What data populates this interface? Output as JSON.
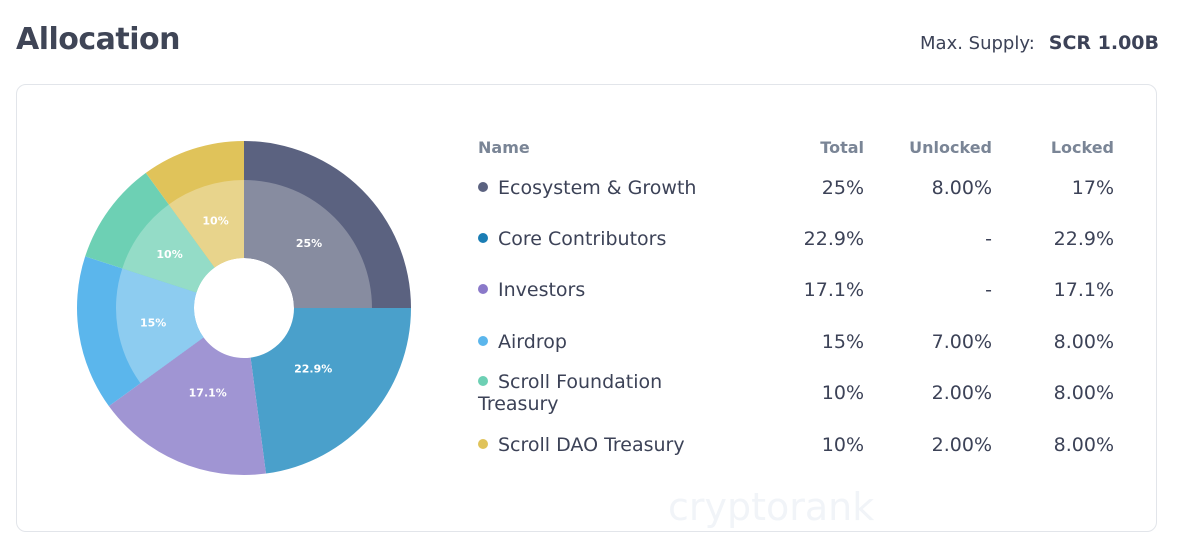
{
  "header": {
    "title": "Allocation",
    "supply_label": "Max. Supply:",
    "supply_value": "SCR 1.00B"
  },
  "watermark": "cryptorank",
  "table": {
    "headers": [
      "Name",
      "Total",
      "Unlocked",
      "Locked"
    ],
    "rows": [
      {
        "name": "Ecosystem & Growth",
        "total": "25%",
        "unlocked": "8.00%",
        "locked": "17%",
        "color": "#5b6280"
      },
      {
        "name": "Core Contributors",
        "total": "22.9%",
        "unlocked": "-",
        "locked": "22.9%",
        "color": "#1a7db4"
      },
      {
        "name": "Investors",
        "total": "17.1%",
        "unlocked": "-",
        "locked": "17.1%",
        "color": "#8a79c9"
      },
      {
        "name": "Airdrop",
        "total": "15%",
        "unlocked": "7.00%",
        "locked": "8.00%",
        "color": "#5bb6ec"
      },
      {
        "name": "Scroll Foundation Treasury",
        "total": "10%",
        "unlocked": "2.00%",
        "locked": "8.00%",
        "color": "#6dd0b4"
      },
      {
        "name": "Scroll DAO Treasury",
        "total": "10%",
        "unlocked": "2.00%",
        "locked": "8.00%",
        "color": "#e0c35a"
      }
    ]
  },
  "chart_data": {
    "type": "pie",
    "variant": "donut",
    "categories": [
      "Ecosystem & Growth",
      "Core Contributors",
      "Investors",
      "Airdrop",
      "Scroll Foundation Treasury",
      "Scroll DAO Treasury"
    ],
    "values": [
      25,
      22.9,
      17.1,
      15,
      10,
      10
    ],
    "labels": [
      "25%",
      "22.9%",
      "17.1%",
      "15%",
      "10%",
      "10%"
    ],
    "unlocked": [
      8,
      0,
      0,
      7,
      2,
      2
    ],
    "colors": [
      "#5b6280",
      "#4aa0cb",
      "#a095d3",
      "#5bb6ec",
      "#6dd0b4",
      "#e0c35a"
    ],
    "light_colors": [
      "#878ca0",
      "#4aa0cb",
      "#a095d3",
      "#8dccf0",
      "#94dcc7",
      "#e8d48c"
    ],
    "start": "top",
    "direction": "clockwise"
  }
}
